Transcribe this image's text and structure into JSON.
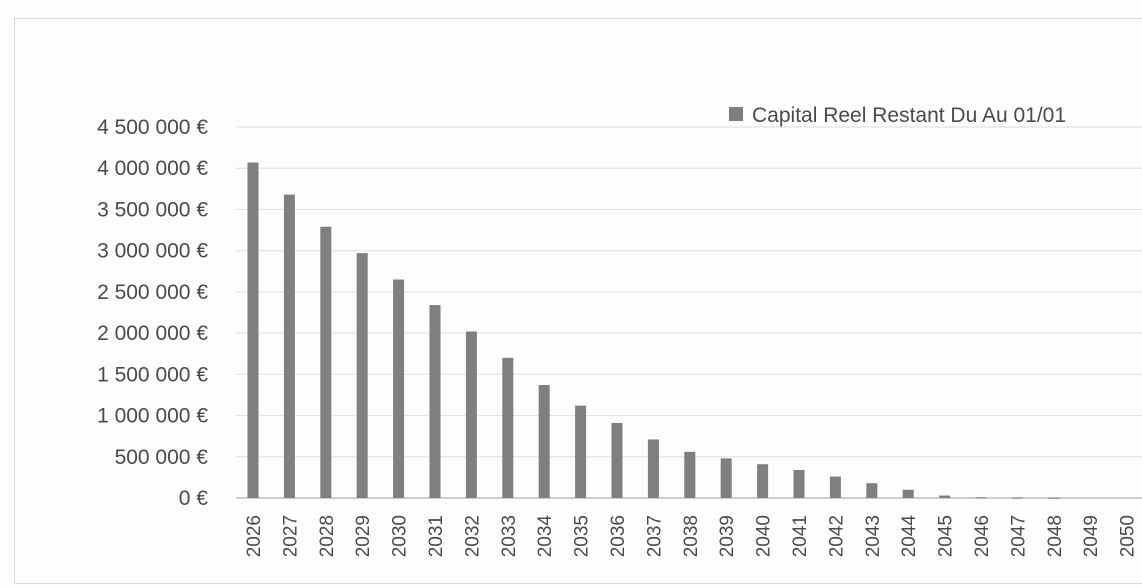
{
  "chart_data": {
    "type": "bar",
    "title": "",
    "xlabel": "",
    "ylabel": "",
    "ylim": [
      0,
      4500000
    ],
    "y_ticks": [
      0,
      500000,
      1000000,
      1500000,
      2000000,
      2500000,
      3000000,
      3500000,
      4000000,
      4500000
    ],
    "y_tick_labels": [
      "0 €",
      "500 000 €",
      "1 000 000 €",
      "1 500 000 €",
      "2 000 000 €",
      "2 500 000 €",
      "3 000 000 €",
      "3 500 000 €",
      "4 000 000 €",
      "4 500 000 €"
    ],
    "categories": [
      "2026",
      "2027",
      "2028",
      "2029",
      "2030",
      "2031",
      "2032",
      "2033",
      "2034",
      "2035",
      "2036",
      "2037",
      "2038",
      "2039",
      "2040",
      "2041",
      "2042",
      "2043",
      "2044",
      "2045",
      "2046",
      "2047",
      "2048",
      "2049",
      "2050"
    ],
    "series": [
      {
        "name": "Capital Reel Restant Du Au 01/01",
        "color": "#7f7f7f",
        "values": [
          4070000,
          3680000,
          3290000,
          2970000,
          2650000,
          2340000,
          2020000,
          1700000,
          1370000,
          1120000,
          910000,
          710000,
          560000,
          480000,
          410000,
          340000,
          260000,
          180000,
          100000,
          30000,
          8000,
          5000,
          3000,
          0,
          0
        ]
      }
    ],
    "grid": true,
    "legend_position": "top-right"
  },
  "colors": {
    "bar": "#7f7f7f",
    "gridline": "#e3e3e3",
    "text": "#4a4a4a"
  }
}
